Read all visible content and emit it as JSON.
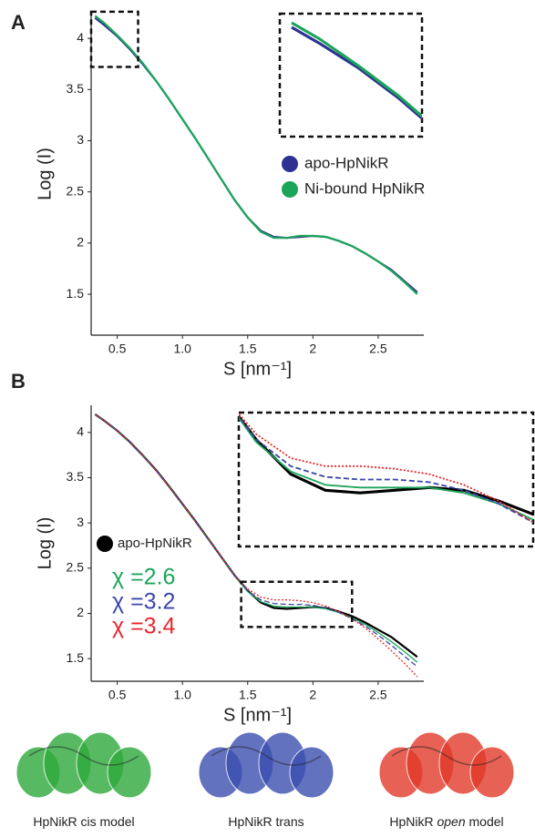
{
  "chart_data": [
    {
      "type": "line",
      "panel": "A",
      "x_label": "S [nm⁻¹]",
      "y_label": "Log (I)",
      "x": [
        0.33,
        0.4,
        0.5,
        0.6,
        0.7,
        0.8,
        0.9,
        1.0,
        1.1,
        1.2,
        1.3,
        1.4,
        1.5,
        1.6,
        1.7,
        1.8,
        1.9,
        2.0,
        2.1,
        2.2,
        2.3,
        2.4,
        2.5,
        2.6,
        2.7,
        2.8
      ],
      "xlim": [
        0.3,
        2.85
      ],
      "ylim": [
        1.1,
        4.25
      ],
      "xticks": [
        0.5,
        {
          "value": 1,
          "label": "1.0"
        },
        1.5,
        2,
        2.5
      ],
      "yticks": [
        1.5,
        2,
        2.5,
        3,
        3.5,
        4
      ],
      "inset_xlim": [
        0.3,
        0.66
      ],
      "inset_ylim": [
        3.72,
        4.26
      ],
      "series": [
        {
          "name": "apo-HpNikR",
          "color": "#2e3192",
          "values": [
            4.2,
            4.13,
            4.02,
            3.89,
            3.74,
            3.58,
            3.4,
            3.21,
            3.02,
            2.82,
            2.62,
            2.42,
            2.25,
            2.12,
            2.06,
            2.05,
            2.06,
            2.07,
            2.06,
            2.02,
            1.97,
            1.9,
            1.82,
            1.74,
            1.63,
            1.52
          ]
        },
        {
          "name": "Ni-bound HpNikR",
          "color": "#1ca55a",
          "values": [
            4.22,
            4.15,
            4.03,
            3.9,
            3.75,
            3.58,
            3.4,
            3.21,
            3.02,
            2.82,
            2.62,
            2.42,
            2.25,
            2.11,
            2.05,
            2.05,
            2.07,
            2.07,
            2.06,
            2.02,
            1.97,
            1.9,
            1.82,
            1.73,
            1.62,
            1.5
          ]
        }
      ]
    },
    {
      "type": "line",
      "panel": "B",
      "x_label": "S [nm⁻¹]",
      "y_label": "Log (I)",
      "x": [
        0.33,
        0.4,
        0.5,
        0.6,
        0.7,
        0.8,
        0.9,
        1.0,
        1.1,
        1.2,
        1.3,
        1.4,
        1.5,
        1.6,
        1.7,
        1.8,
        1.9,
        2.0,
        2.1,
        2.2,
        2.3,
        2.4,
        2.5,
        2.6,
        2.7,
        2.8
      ],
      "xlim": [
        0.3,
        2.85
      ],
      "ylim": [
        1.25,
        4.3
      ],
      "xticks": [
        0.5,
        {
          "value": 1,
          "label": "1.0"
        },
        1.5,
        2,
        2.5
      ],
      "yticks": [
        1.5,
        2,
        2.5,
        3,
        3.5,
        4
      ],
      "inset_xlim": [
        1.45,
        2.3
      ],
      "inset_ylim": [
        1.85,
        2.35
      ],
      "series": [
        {
          "name": "apo-HpNikR",
          "color": "#000000",
          "values": [
            4.2,
            4.13,
            4.02,
            3.89,
            3.74,
            3.58,
            3.4,
            3.21,
            3.02,
            2.82,
            2.62,
            2.42,
            2.25,
            2.12,
            2.06,
            2.05,
            2.06,
            2.07,
            2.06,
            2.02,
            1.97,
            1.9,
            1.82,
            1.74,
            1.63,
            1.52
          ]
        },
        {
          "name": "χ =2.6",
          "color": "#1ca55a",
          "values": [
            4.2,
            4.13,
            4.02,
            3.89,
            3.74,
            3.58,
            3.4,
            3.21,
            3.02,
            2.82,
            2.62,
            2.42,
            2.24,
            2.13,
            2.08,
            2.07,
            2.07,
            2.07,
            2.05,
            2.01,
            1.95,
            1.88,
            1.79,
            1.69,
            1.58,
            1.46
          ]
        },
        {
          "name": "χ =3.2",
          "color": "#3a46a8",
          "values": [
            4.2,
            4.13,
            4.02,
            3.89,
            3.74,
            3.58,
            3.4,
            3.21,
            3.02,
            2.82,
            2.62,
            2.42,
            2.25,
            2.15,
            2.11,
            2.1,
            2.1,
            2.09,
            2.06,
            2.01,
            1.94,
            1.86,
            1.76,
            1.65,
            1.53,
            1.41
          ]
        },
        {
          "name": "χ =3.4",
          "color": "#e8262c",
          "values": [
            4.2,
            4.13,
            4.02,
            3.89,
            3.74,
            3.58,
            3.4,
            3.21,
            3.02,
            2.82,
            2.62,
            2.42,
            2.27,
            2.18,
            2.15,
            2.15,
            2.14,
            2.12,
            2.08,
            2.02,
            1.94,
            1.84,
            1.72,
            1.59,
            1.45,
            1.3
          ]
        }
      ]
    }
  ],
  "models": [
    {
      "label": [
        "HpNikR cis model"
      ],
      "color": "#2eaa3c"
    },
    {
      "label": [
        "HpNikR trans"
      ],
      "color": "#3b4fb0"
    },
    {
      "label": [
        "HpNikR ",
        "open",
        " model"
      ],
      "color": "#e23a2a"
    }
  ]
}
